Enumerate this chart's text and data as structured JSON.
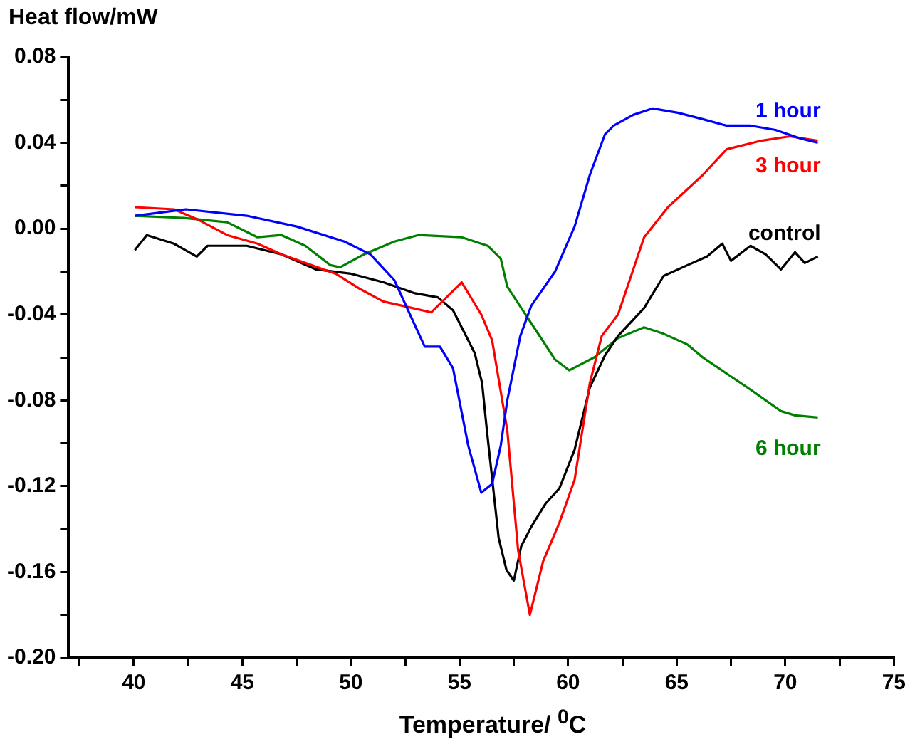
{
  "chart_data": {
    "type": "line",
    "xlabel": "Temperature/ $^{0}$C",
    "ylabel": "Heat flow/mW",
    "xlim": [
      37,
      75
    ],
    "ylim": [
      -0.2,
      0.08
    ],
    "xticks": [
      {
        "value": 37.5,
        "label": null
      },
      40,
      {
        "value": 42.5,
        "label": null
      },
      45,
      {
        "value": 47.5,
        "label": null
      },
      50,
      {
        "value": 52.5,
        "label": null
      },
      55,
      {
        "value": 57.5,
        "label": null
      },
      60,
      {
        "value": 62.5,
        "label": null
      },
      65,
      {
        "value": 67.5,
        "label": null
      },
      70,
      {
        "value": 72.5,
        "label": null
      },
      75
    ],
    "yticks": [
      {
        "value": -0.2,
        "label": "-0.20"
      },
      {
        "value": -0.18,
        "label": null
      },
      {
        "value": -0.16,
        "label": "-0.16"
      },
      {
        "value": -0.14,
        "label": null
      },
      {
        "value": -0.12,
        "label": "-0.12"
      },
      {
        "value": -0.1,
        "label": null
      },
      {
        "value": -0.08,
        "label": "-0.08"
      },
      {
        "value": -0.06,
        "label": null
      },
      {
        "value": -0.04,
        "label": "-0.04"
      },
      {
        "value": -0.02,
        "label": null
      },
      {
        "value": 0,
        "label": "0.00"
      },
      {
        "value": 0.02,
        "label": null
      },
      {
        "value": 0.04,
        "label": "0.04"
      },
      {
        "value": 0.06,
        "label": null
      },
      {
        "value": 0.08,
        "label": "0.08"
      }
    ],
    "grid": false,
    "legend": false,
    "marker": "none",
    "line_style": "solid",
    "series": [
      {
        "name": "1 hour",
        "color": "#0000ff",
        "x": [
          40.05,
          42.4,
          45.2,
          47.5,
          49.7,
          50.9,
          52.0,
          52.9,
          53.4,
          54.1,
          54.7,
          55.4,
          56.0,
          56.5,
          56.9,
          57.2,
          57.8,
          58.3,
          59.4,
          60.3,
          61.0,
          61.7,
          62.1,
          63.0,
          63.9,
          65.05,
          66.2,
          67.3,
          68.4,
          69.55,
          70.7,
          71.5
        ],
        "values": [
          0.006,
          0.009,
          0.006,
          0.001,
          -0.006,
          -0.012,
          -0.024,
          -0.044,
          -0.055,
          -0.055,
          -0.065,
          -0.101,
          -0.123,
          -0.119,
          -0.101,
          -0.08,
          -0.05,
          -0.036,
          -0.02,
          0.001,
          0.025,
          0.044,
          0.048,
          0.053,
          0.056,
          0.054,
          0.051,
          0.048,
          0.048,
          0.046,
          0.042,
          0.04
        ]
      },
      {
        "name": "3 hour",
        "color": "#ff0000",
        "x": [
          40.05,
          41.85,
          43.0,
          44.3,
          45.7,
          46.8,
          47.9,
          49.3,
          50.4,
          51.5,
          52.4,
          53.7,
          54.5,
          55.1,
          56.0,
          56.5,
          57.2,
          57.7,
          58.24,
          58.85,
          59.6,
          60.3,
          61.0,
          61.55,
          62.3,
          63.5,
          64.6,
          66.2,
          67.3,
          68.9,
          70.2,
          71.5
        ],
        "values": [
          0.01,
          0.009,
          0.004,
          -0.003,
          -0.007,
          -0.012,
          -0.016,
          -0.021,
          -0.028,
          -0.034,
          -0.036,
          -0.039,
          -0.031,
          -0.025,
          -0.04,
          -0.052,
          -0.094,
          -0.15,
          -0.18,
          -0.155,
          -0.137,
          -0.117,
          -0.072,
          -0.05,
          -0.04,
          -0.004,
          0.01,
          0.025,
          0.037,
          0.041,
          0.043,
          0.041
        ]
      },
      {
        "name": "control",
        "color": "#000000",
        "x": [
          40.05,
          40.6,
          41.85,
          42.9,
          43.4,
          45.2,
          46.8,
          48.4,
          50.0,
          51.5,
          52.9,
          54.0,
          54.7,
          55.1,
          55.7,
          56.04,
          56.26,
          56.8,
          57.16,
          57.5,
          57.84,
          58.3,
          58.97,
          59.6,
          60.3,
          61.0,
          61.7,
          62.3,
          63.5,
          64.4,
          65.5,
          66.4,
          67.1,
          67.5,
          68.4,
          69.1,
          69.8,
          70.45,
          70.9,
          71.5
        ],
        "values": [
          -0.01,
          -0.003,
          -0.007,
          -0.013,
          -0.008,
          -0.008,
          -0.012,
          -0.019,
          -0.021,
          -0.025,
          -0.03,
          -0.032,
          -0.038,
          -0.046,
          -0.058,
          -0.072,
          -0.094,
          -0.144,
          -0.159,
          -0.164,
          -0.148,
          -0.139,
          -0.128,
          -0.121,
          -0.103,
          -0.074,
          -0.059,
          -0.05,
          -0.037,
          -0.022,
          -0.017,
          -0.013,
          -0.007,
          -0.015,
          -0.008,
          -0.012,
          -0.019,
          -0.011,
          -0.016,
          -0.013
        ]
      },
      {
        "name": "6 hour",
        "color": "#008000",
        "x": [
          40.05,
          42.3,
          44.3,
          45.7,
          46.8,
          47.9,
          49.05,
          49.5,
          50.6,
          52.0,
          53.1,
          55.1,
          56.3,
          56.9,
          57.2,
          58.3,
          59.4,
          60.05,
          61.2,
          62.3,
          63.5,
          64.4,
          65.5,
          66.2,
          68.4,
          69.8,
          70.45,
          71.5
        ],
        "values": [
          0.006,
          0.005,
          0.003,
          -0.004,
          -0.003,
          -0.008,
          -0.017,
          -0.018,
          -0.012,
          -0.006,
          -0.003,
          -0.004,
          -0.008,
          -0.014,
          -0.027,
          -0.044,
          -0.061,
          -0.066,
          -0.06,
          -0.051,
          -0.046,
          -0.049,
          -0.054,
          -0.06,
          -0.075,
          -0.085,
          -0.087,
          -0.088
        ]
      }
    ]
  }
}
